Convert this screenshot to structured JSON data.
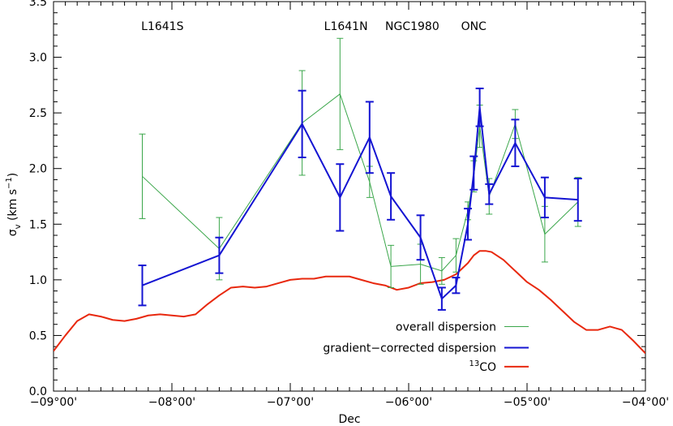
{
  "chart_data": {
    "type": "line",
    "xlabel": "Dec",
    "ylabel": {
      "sigma": "σ",
      "sub": "v",
      "units_prefix": " (km s",
      "units_sup": "−1",
      "units_suffix": ")"
    },
    "xlim": [
      -9.0,
      -4.0
    ],
    "ylim": [
      0.0,
      3.5
    ],
    "x_ticks": [
      {
        "value": -9.0,
        "label": "−09°00'"
      },
      {
        "value": -8.0,
        "label": "−08°00'"
      },
      {
        "value": -7.0,
        "label": "−07°00'"
      },
      {
        "value": -6.0,
        "label": "−06°00'"
      },
      {
        "value": -5.0,
        "label": "−05°00'"
      },
      {
        "value": -4.0,
        "label": "−04°00'"
      }
    ],
    "y_ticks": [
      {
        "value": 0.0,
        "label": "0.0"
      },
      {
        "value": 0.5,
        "label": "0.5"
      },
      {
        "value": 1.0,
        "label": "1.0"
      },
      {
        "value": 1.5,
        "label": "1.5"
      },
      {
        "value": 2.0,
        "label": "2.0"
      },
      {
        "value": 2.5,
        "label": "2.5"
      },
      {
        "value": 3.0,
        "label": "3.0"
      },
      {
        "value": 3.5,
        "label": "3.5"
      }
    ],
    "region_labels": [
      {
        "text": "L1641S",
        "x": -8.08
      },
      {
        "text": "L1641N",
        "x": -6.53
      },
      {
        "text": "NGC1980",
        "x": -5.97
      },
      {
        "text": "ONC",
        "x": -5.45
      }
    ],
    "region_label_y": 3.28,
    "series": [
      {
        "name": "overall dispersion",
        "color": "#3aa64a",
        "width": 1,
        "x": [
          -8.25,
          -7.6,
          -6.9,
          -6.58,
          -6.33,
          -6.15,
          -5.9,
          -5.72,
          -5.6,
          -5.5,
          -5.45,
          -5.4,
          -5.32,
          -5.1,
          -4.85,
          -4.57
        ],
        "y": [
          1.93,
          1.28,
          2.41,
          2.67,
          1.88,
          1.12,
          1.14,
          1.08,
          1.22,
          1.62,
          1.93,
          2.38,
          1.75,
          2.4,
          1.41,
          1.7
        ],
        "err": [
          0.38,
          0.28,
          0.47,
          0.5,
          0.14,
          0.19,
          0.18,
          0.12,
          0.15,
          0.08,
          0.14,
          0.19,
          0.16,
          0.13,
          0.25,
          0.22
        ]
      },
      {
        "name": "gradient−corrected dispersion",
        "color": "#1414d2",
        "width": 2,
        "x": [
          -8.25,
          -7.6,
          -6.9,
          -6.58,
          -6.33,
          -6.15,
          -5.9,
          -5.72,
          -5.6,
          -5.5,
          -5.45,
          -5.4,
          -5.32,
          -5.1,
          -4.85,
          -4.57
        ],
        "y": [
          0.95,
          1.22,
          2.4,
          1.74,
          2.28,
          1.75,
          1.38,
          0.83,
          0.95,
          1.5,
          1.96,
          2.55,
          1.77,
          2.23,
          1.74,
          1.72
        ],
        "err": [
          0.18,
          0.16,
          0.3,
          0.3,
          0.32,
          0.21,
          0.2,
          0.1,
          0.07,
          0.14,
          0.15,
          0.17,
          0.09,
          0.21,
          0.18,
          0.19
        ]
      },
      {
        "name": "13CO",
        "legend_sup": "13",
        "legend_text": "CO",
        "color": "#e8280e",
        "width": 2,
        "x": [
          -9.0,
          -8.9,
          -8.8,
          -8.7,
          -8.6,
          -8.5,
          -8.4,
          -8.3,
          -8.2,
          -8.1,
          -8.0,
          -7.9,
          -7.8,
          -7.7,
          -7.6,
          -7.5,
          -7.4,
          -7.3,
          -7.2,
          -7.1,
          -7.0,
          -6.9,
          -6.8,
          -6.7,
          -6.6,
          -6.5,
          -6.4,
          -6.3,
          -6.2,
          -6.1,
          -6.0,
          -5.9,
          -5.8,
          -5.7,
          -5.6,
          -5.5,
          -5.45,
          -5.4,
          -5.35,
          -5.3,
          -5.2,
          -5.1,
          -5.0,
          -4.9,
          -4.8,
          -4.7,
          -4.6,
          -4.5,
          -4.4,
          -4.3,
          -4.2,
          -4.1,
          -4.0
        ],
        "y": [
          0.36,
          0.5,
          0.63,
          0.69,
          0.67,
          0.64,
          0.63,
          0.65,
          0.68,
          0.69,
          0.68,
          0.67,
          0.69,
          0.78,
          0.86,
          0.93,
          0.94,
          0.93,
          0.94,
          0.97,
          1.0,
          1.01,
          1.01,
          1.03,
          1.03,
          1.03,
          1.0,
          0.97,
          0.95,
          0.91,
          0.93,
          0.97,
          0.98,
          1.0,
          1.05,
          1.15,
          1.22,
          1.26,
          1.26,
          1.25,
          1.18,
          1.08,
          0.98,
          0.91,
          0.82,
          0.72,
          0.62,
          0.55,
          0.55,
          0.58,
          0.55,
          0.45,
          0.34
        ]
      }
    ],
    "legend_position": "bottom-right"
  }
}
